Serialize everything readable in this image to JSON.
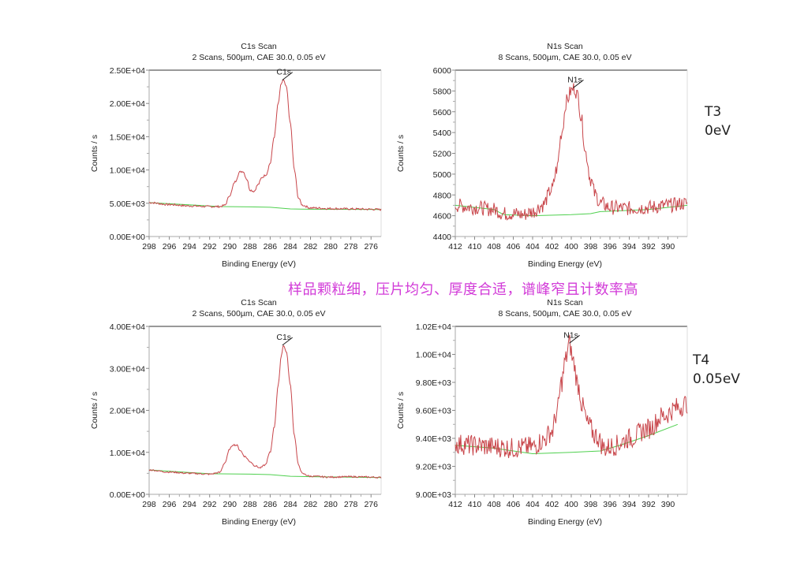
{
  "caption": "样品颗粒细，压片均匀、厚度合适，谱峰窄且计数率高",
  "labels": {
    "t3": {
      "name": "T3",
      "value": "0eV"
    },
    "t4": {
      "name": "T4",
      "value": "0.05eV"
    }
  },
  "colors": {
    "trace": "#c8454a",
    "background_line": "#4fd04f",
    "frame": "#999999",
    "caption": "#d23bd8"
  },
  "chart_data": [
    {
      "id": "t3-c1s",
      "type": "line",
      "title": "C1s Scan",
      "subtitle": "2 Scans,  500µm,  CAE 30.0,  0.05 eV",
      "xlabel": "Binding Energy (eV)",
      "ylabel": "Counts / s",
      "xlim": [
        298,
        275
      ],
      "ylim": [
        0,
        25000
      ],
      "xticks": [
        298,
        296,
        294,
        292,
        290,
        288,
        286,
        284,
        282,
        280,
        278,
        276
      ],
      "yticks": [
        0,
        5000,
        10000,
        15000,
        20000,
        25000
      ],
      "ytick_labels": [
        "0.00E+00",
        "5.00E+03",
        "1.00E+04",
        "1.50E+04",
        "2.00E+04",
        "2.50E+04"
      ],
      "peak_label": "C1s",
      "peak_at": [
        284.8,
        23500
      ],
      "noise": 150,
      "series": [
        {
          "name": "spectrum",
          "x": [
            298,
            296,
            294,
            292,
            291,
            290.5,
            290,
            289.5,
            289,
            288.7,
            288.3,
            288,
            287.6,
            287.2,
            286.8,
            286.4,
            286,
            285.6,
            285.2,
            284.9,
            284.7,
            284.4,
            284,
            283.6,
            283.2,
            282.8,
            282,
            280,
            278,
            276,
            275
          ],
          "y": [
            5100,
            4800,
            4600,
            4500,
            4500,
            4700,
            6200,
            8200,
            9700,
            9800,
            8600,
            7000,
            6800,
            7800,
            8900,
            9300,
            11000,
            15000,
            20000,
            23000,
            23500,
            22500,
            17000,
            10000,
            5800,
            4700,
            4300,
            4200,
            4150,
            4100,
            4050
          ]
        },
        {
          "name": "background",
          "x": [
            298,
            291,
            288,
            286,
            284,
            282,
            275
          ],
          "y": [
            5100,
            4500,
            4450,
            4400,
            4150,
            4100,
            4050
          ]
        }
      ]
    },
    {
      "id": "t3-n1s",
      "type": "line",
      "title": "N1s Scan",
      "subtitle": "8 Scans,  500µm,  CAE 30.0,  0.05 eV",
      "xlabel": "Binding Energy (eV)",
      "ylabel": "Counts / s",
      "xlim": [
        412,
        388
      ],
      "ylim": [
        4400,
        6000
      ],
      "xticks": [
        412,
        410,
        408,
        406,
        404,
        402,
        400,
        398,
        396,
        394,
        392,
        390
      ],
      "yticks": [
        4400,
        4600,
        4800,
        5000,
        5200,
        5400,
        5600,
        5800,
        6000
      ],
      "ytick_labels": [
        "4400",
        "4600",
        "4800",
        "5000",
        "5200",
        "5400",
        "5600",
        "5800",
        "6000"
      ],
      "peak_label": "N1s",
      "peak_at": [
        399.8,
        5830
      ],
      "noise": 70,
      "series": [
        {
          "name": "spectrum",
          "x": [
            412,
            410,
            408,
            407,
            406,
            405,
            404,
            403,
            402,
            401.5,
            401,
            400.5,
            400,
            399.7,
            399.3,
            399,
            398.5,
            398,
            397.5,
            397,
            396,
            394,
            392,
            390,
            388
          ],
          "y": [
            4700,
            4680,
            4660,
            4620,
            4620,
            4610,
            4640,
            4700,
            4850,
            5050,
            5400,
            5700,
            5800,
            5830,
            5750,
            5550,
            5200,
            4950,
            4800,
            4720,
            4680,
            4670,
            4680,
            4700,
            4720
          ]
        },
        {
          "name": "background",
          "x": [
            412,
            408,
            407,
            404,
            400,
            398,
            397,
            392,
            388
          ],
          "y": [
            4700,
            4660,
            4610,
            4600,
            4610,
            4620,
            4640,
            4660,
            4700
          ]
        }
      ]
    },
    {
      "id": "t4-c1s",
      "type": "line",
      "title": "C1s Scan",
      "subtitle": "2 Scans,  500µm,  CAE 30.0,  0.05 eV",
      "xlabel": "Binding Energy (eV)",
      "ylabel": "Counts / s",
      "xlim": [
        298,
        275
      ],
      "ylim": [
        0,
        40000
      ],
      "xticks": [
        298,
        296,
        294,
        292,
        290,
        288,
        286,
        284,
        282,
        280,
        278,
        276
      ],
      "yticks": [
        0,
        10000,
        20000,
        30000,
        40000
      ],
      "ytick_labels": [
        "0.00E+00",
        "1.00E+04",
        "2.00E+04",
        "3.00E+04",
        "4.00E+04"
      ],
      "peak_label": "C1s",
      "peak_at": [
        284.8,
        35500
      ],
      "noise": 180,
      "series": [
        {
          "name": "spectrum",
          "x": [
            298,
            296,
            294,
            292,
            291,
            290.5,
            290,
            289.7,
            289.3,
            289,
            288.5,
            288,
            287.5,
            287,
            286.5,
            286,
            285.6,
            285.2,
            284.9,
            284.7,
            284.4,
            284,
            283.6,
            283.2,
            282.8,
            282,
            280,
            278,
            276,
            275
          ],
          "y": [
            5800,
            5300,
            5000,
            4800,
            5200,
            7500,
            10800,
            11800,
            11700,
            10500,
            9000,
            7800,
            6800,
            6300,
            7000,
            10000,
            16000,
            26000,
            33000,
            35500,
            34000,
            26000,
            14000,
            7000,
            4900,
            4300,
            4100,
            4200,
            4100,
            4000
          ]
        },
        {
          "name": "background",
          "x": [
            298,
            292,
            288,
            286,
            284,
            282,
            275
          ],
          "y": [
            5800,
            4900,
            4800,
            4700,
            4300,
            4200,
            4000
          ]
        }
      ]
    },
    {
      "id": "t4-n1s",
      "type": "line",
      "title": "N1s Scan",
      "subtitle": "8 Scans,  500µm,  CAE 30.0,  0.05 eV",
      "xlabel": "Binding Energy (eV)",
      "ylabel": "Counts / s",
      "xlim": [
        412,
        388
      ],
      "ylim": [
        9000,
        10200
      ],
      "xticks": [
        412,
        410,
        408,
        406,
        404,
        402,
        400,
        398,
        396,
        394,
        392,
        390
      ],
      "yticks": [
        9000,
        9200,
        9400,
        9600,
        9800,
        10000,
        10200
      ],
      "ytick_labels": [
        "9.00E+03",
        "9.20E+03",
        "9.40E+03",
        "9.60E+03",
        "9.80E+03",
        "1.00E+04",
        "1.02E+04"
      ],
      "peak_label": "N1s",
      "peak_at": [
        400.2,
        10080
      ],
      "noise": 75,
      "series": [
        {
          "name": "spectrum",
          "x": [
            412,
            410,
            408,
            406,
            404,
            403,
            402,
            401.5,
            401,
            400.6,
            400.2,
            399.8,
            399.3,
            398.8,
            398.3,
            397.5,
            396.5,
            395.5,
            394,
            392,
            390.5,
            389,
            388
          ],
          "y": [
            9360,
            9350,
            9340,
            9330,
            9340,
            9380,
            9450,
            9580,
            9800,
            9960,
            10080,
            9950,
            9780,
            9620,
            9500,
            9420,
            9330,
            9350,
            9400,
            9470,
            9560,
            9620,
            9650
          ]
        },
        {
          "name": "background",
          "x": [
            412,
            408,
            404,
            400,
            397,
            395,
            392,
            389
          ],
          "y": [
            9350,
            9330,
            9290,
            9300,
            9310,
            9350,
            9420,
            9500
          ]
        }
      ]
    }
  ]
}
